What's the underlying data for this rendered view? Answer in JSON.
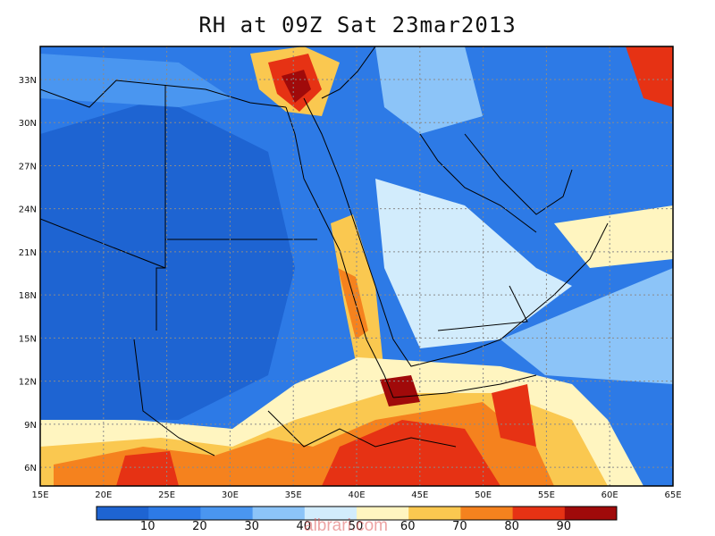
{
  "title": "RH at 09Z Sat 23mar2013",
  "watermark": "albrari.com",
  "map": {
    "lon_range": [
      15,
      65
    ],
    "lat_range": [
      4.7,
      35.3
    ],
    "lon_ticks": [
      "15E",
      "20E",
      "25E",
      "30E",
      "35E",
      "40E",
      "45E",
      "50E",
      "55E",
      "60E",
      "65E"
    ],
    "lat_ticks": [
      "6N",
      "9N",
      "12N",
      "15N",
      "18N",
      "21N",
      "24N",
      "27N",
      "30N",
      "33N"
    ],
    "grid": true
  },
  "colorbar": {
    "labels": [
      "10",
      "20",
      "30",
      "40",
      "50",
      "60",
      "70",
      "80",
      "90"
    ],
    "colors": [
      "#1e64d2",
      "#2d7ae6",
      "#4a96f0",
      "#8cc4f8",
      "#d2ecfc",
      "#fff5c0",
      "#fac850",
      "#f5821e",
      "#e63214",
      "#a00a0a"
    ]
  },
  "palette": {
    "ocean_blue": "#2d7ae6",
    "dry_blue": "#1e64d2",
    "moist_red": "#e63214",
    "border": "#000000"
  }
}
